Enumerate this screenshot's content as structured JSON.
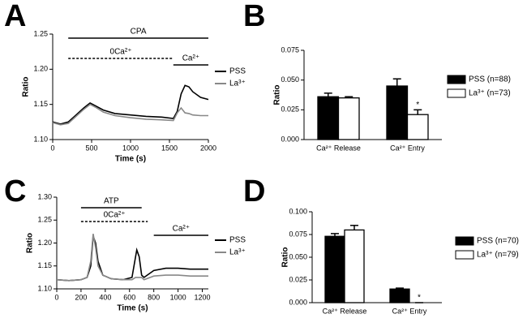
{
  "chart_data": [
    {
      "type": "line",
      "letter": "A",
      "xlabel": "Time (s)",
      "ylabel": "Ratio",
      "x": [
        0,
        100,
        200,
        300,
        400,
        480,
        550,
        650,
        800,
        1000,
        1200,
        1400,
        1550,
        1600,
        1650,
        1700,
        1750,
        1800,
        1900,
        2000
      ],
      "series": [
        {
          "name": "PSS",
          "color": "#000000",
          "values": [
            1.125,
            1.122,
            1.125,
            1.135,
            1.145,
            1.152,
            1.148,
            1.142,
            1.137,
            1.135,
            1.133,
            1.132,
            1.13,
            1.14,
            1.165,
            1.177,
            1.175,
            1.168,
            1.16,
            1.157
          ]
        },
        {
          "name": "La³⁺",
          "color": "#888888",
          "values": [
            1.124,
            1.121,
            1.123,
            1.133,
            1.143,
            1.15,
            1.146,
            1.139,
            1.134,
            1.131,
            1.129,
            1.128,
            1.127,
            1.138,
            1.145,
            1.138,
            1.137,
            1.135,
            1.134,
            1.134
          ]
        }
      ],
      "xlim": [
        0,
        2000
      ],
      "xticks": [
        0,
        500,
        1000,
        1500,
        2000
      ],
      "ylim": [
        1.1,
        1.25
      ],
      "yticks": [
        {
          "value": 1.1,
          "label": "1.10"
        },
        1.15,
        {
          "value": 1.2,
          "label": "1.20"
        },
        1.25
      ],
      "annotations": [
        {
          "text": "CPA",
          "x": [
            200,
            2000
          ],
          "style": "solid"
        },
        {
          "text": "0Ca²⁺",
          "x": [
            200,
            1550
          ],
          "style": "dashed"
        },
        {
          "text": "Ca²⁺",
          "x": [
            1550,
            2000
          ],
          "style": "solid"
        }
      ],
      "legend": "right"
    },
    {
      "type": "bar",
      "letter": "B",
      "ylabel": "Ratio",
      "categories": [
        "Ca²⁺ Release",
        "Ca²⁺ Entry"
      ],
      "series": [
        {
          "name": "PSS (n=88)",
          "color": "#000000",
          "values": [
            0.036,
            0.045
          ],
          "errors": [
            0.003,
            0.006
          ]
        },
        {
          "name": "La³⁺ (n=73)",
          "color": "#ffffff",
          "values": [
            0.035,
            0.021
          ],
          "errors": [
            0.001,
            0.004
          ]
        }
      ],
      "ylim": [
        0,
        0.075
      ],
      "yticks": [
        {
          "value": 0,
          "label": "0.000"
        },
        0.025,
        {
          "value": 0.05,
          "label": "0.050"
        },
        0.075
      ],
      "annotations": [
        {
          "text": "*"
        }
      ],
      "legend": "right"
    },
    {
      "type": "line",
      "letter": "C",
      "xlabel": "Time (s)",
      "ylabel": "Ratio",
      "x": [
        0,
        100,
        200,
        250,
        280,
        300,
        320,
        340,
        380,
        450,
        550,
        620,
        650,
        660,
        680,
        700,
        720,
        800,
        900,
        1000,
        1100,
        1250
      ],
      "series": [
        {
          "name": "PSS",
          "color": "#000000",
          "values": [
            1.12,
            1.118,
            1.12,
            1.125,
            1.15,
            1.215,
            1.2,
            1.16,
            1.13,
            1.122,
            1.12,
            1.125,
            1.17,
            1.185,
            1.17,
            1.13,
            1.125,
            1.14,
            1.145,
            1.145,
            1.143,
            1.143
          ]
        },
        {
          "name": "La³⁺",
          "color": "#888888",
          "values": [
            1.12,
            1.118,
            1.12,
            1.125,
            1.16,
            1.22,
            1.19,
            1.15,
            1.13,
            1.122,
            1.12,
            1.12,
            1.125,
            1.125,
            1.125,
            1.125,
            1.12,
            1.128,
            1.13,
            1.13,
            1.128,
            1.128
          ]
        }
      ],
      "xlim": [
        0,
        1250
      ],
      "xticks": [
        0,
        200,
        400,
        600,
        800,
        1000,
        1200
      ],
      "ylim": [
        1.1,
        1.3
      ],
      "yticks": [
        {
          "value": 1.1,
          "label": "1.10"
        },
        1.15,
        {
          "value": 1.2,
          "label": "1.20"
        },
        1.25,
        {
          "value": 1.3,
          "label": "1.30"
        }
      ],
      "annotations": [
        {
          "text": "ATP",
          "x": [
            200,
            700
          ],
          "style": "solid"
        },
        {
          "text": "0Ca²⁺",
          "x": [
            200,
            750
          ],
          "style": "dashed"
        },
        {
          "text": "Ca²⁺",
          "x": [
            800,
            1250
          ],
          "style": "solid"
        }
      ],
      "legend": "right"
    },
    {
      "type": "bar",
      "letter": "D",
      "ylabel": "Ratio",
      "categories": [
        "Ca²⁺ Release",
        "Ca²⁺ Entry"
      ],
      "series": [
        {
          "name": "PSS (n=70)",
          "color": "#000000",
          "values": [
            0.073,
            0.015
          ],
          "errors": [
            0.003,
            0.001
          ]
        },
        {
          "name": "La³⁺ (n=79)",
          "color": "#ffffff",
          "values": [
            0.08,
            0
          ],
          "errors": [
            0.005,
            0
          ]
        }
      ],
      "ylim": [
        0,
        0.1
      ],
      "yticks": [
        {
          "value": 0,
          "label": "0.000"
        },
        0.025,
        {
          "value": 0.05,
          "label": "0.050"
        },
        0.075,
        {
          "value": 0.1,
          "label": "0.100"
        }
      ],
      "annotations": [
        {
          "text": "*"
        }
      ],
      "legend": "right"
    }
  ]
}
